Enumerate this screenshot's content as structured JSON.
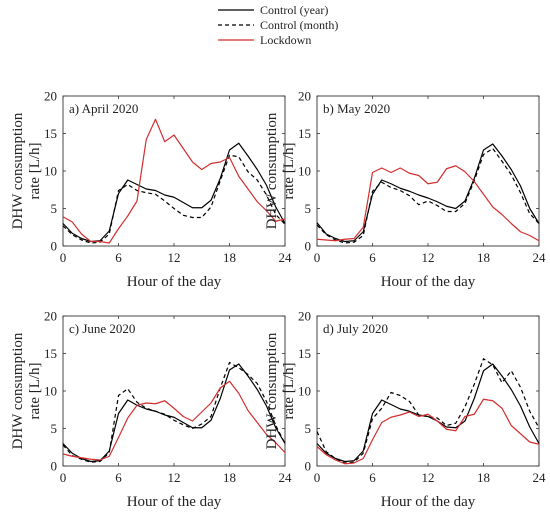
{
  "legend": {
    "items": [
      {
        "label": "Control (year)",
        "color": "#000000",
        "dash": "solid"
      },
      {
        "label": "Control (month)",
        "color": "#000000",
        "dash": "dashed"
      },
      {
        "label": "Lockdown",
        "color": "#d32f2f",
        "dash": "solid"
      }
    ]
  },
  "chart_data": [
    {
      "type": "line",
      "title": "a) April 2020",
      "xlabel": "Hour of the day",
      "ylabel": [
        "DHW consumption",
        "rate [L/h]"
      ],
      "xlim": [
        0,
        24
      ],
      "ylim": [
        0,
        20
      ],
      "xticks": [
        0,
        6,
        12,
        18,
        24
      ],
      "yticks": [
        0,
        5,
        10,
        15,
        20
      ],
      "x": [
        0,
        1,
        2,
        3,
        4,
        5,
        6,
        7,
        8,
        9,
        10,
        11,
        12,
        13,
        14,
        15,
        16,
        17,
        18,
        19,
        20,
        21,
        22,
        23,
        24
      ],
      "series": [
        {
          "name": "Control (year)",
          "values": [
            3.0,
            1.7,
            1.0,
            0.6,
            0.7,
            2.0,
            7.0,
            8.8,
            8.2,
            7.6,
            7.4,
            6.8,
            6.5,
            5.8,
            5.1,
            5.1,
            6.1,
            9.0,
            12.8,
            13.7,
            12.0,
            10.2,
            8.1,
            5.2,
            3.0
          ]
        },
        {
          "name": "Control (month)",
          "values": [
            2.7,
            1.5,
            0.8,
            0.4,
            0.5,
            1.6,
            7.4,
            8.2,
            7.4,
            7.1,
            6.9,
            6.0,
            5.0,
            4.1,
            3.8,
            3.8,
            5.2,
            8.7,
            12.1,
            11.9,
            9.9,
            8.8,
            6.8,
            4.2,
            2.9
          ]
        },
        {
          "name": "Lockdown",
          "values": [
            3.9,
            3.2,
            1.6,
            0.6,
            0.6,
            0.4,
            2.3,
            4.0,
            6.0,
            14.2,
            16.9,
            13.9,
            14.8,
            13.0,
            11.2,
            10.2,
            11.0,
            11.2,
            11.8,
            9.3,
            7.6,
            5.9,
            4.7,
            3.3,
            3.6
          ]
        }
      ]
    },
    {
      "type": "line",
      "title": "b) May 2020",
      "xlabel": "Hour of the day",
      "ylabel": [
        "DHW consumption",
        "rate [L/h]"
      ],
      "xlim": [
        0,
        24
      ],
      "ylim": [
        0,
        20
      ],
      "xticks": [
        0,
        6,
        12,
        18,
        24
      ],
      "yticks": [
        0,
        5,
        10,
        15,
        20
      ],
      "x": [
        0,
        1,
        2,
        3,
        4,
        5,
        6,
        7,
        8,
        9,
        10,
        11,
        12,
        13,
        14,
        15,
        16,
        17,
        18,
        19,
        20,
        21,
        22,
        23,
        24
      ],
      "series": [
        {
          "name": "Control (year)",
          "values": [
            3.1,
            1.6,
            1.0,
            0.6,
            0.7,
            1.9,
            6.9,
            8.8,
            8.3,
            7.7,
            7.3,
            6.8,
            6.4,
            5.9,
            5.3,
            5.0,
            6.0,
            9.0,
            12.8,
            13.6,
            12.0,
            10.2,
            8.0,
            5.0,
            3.0
          ]
        },
        {
          "name": "Control (month)",
          "values": [
            2.8,
            1.5,
            0.8,
            0.4,
            0.5,
            1.4,
            7.3,
            8.5,
            7.8,
            7.4,
            6.7,
            5.5,
            6.0,
            5.4,
            4.6,
            4.6,
            5.7,
            8.7,
            12.2,
            13.0,
            11.3,
            9.5,
            7.1,
            4.3,
            3.0
          ]
        },
        {
          "name": "Lockdown",
          "values": [
            0.9,
            0.8,
            0.7,
            0.9,
            1.0,
            2.5,
            9.8,
            10.4,
            9.8,
            10.4,
            9.7,
            9.4,
            8.3,
            8.5,
            10.3,
            10.7,
            9.9,
            8.6,
            6.9,
            5.2,
            4.2,
            3.0,
            1.9,
            1.4,
            0.7
          ]
        }
      ]
    },
    {
      "type": "line",
      "title": "c) June 2020",
      "xlabel": "Hour of the day",
      "ylabel": [
        "DHW consumption",
        "rate [L/h]"
      ],
      "xlim": [
        0,
        24
      ],
      "ylim": [
        0,
        20
      ],
      "xticks": [
        0,
        6,
        12,
        18,
        24
      ],
      "yticks": [
        0,
        5,
        10,
        15,
        20
      ],
      "x": [
        0,
        1,
        2,
        3,
        4,
        5,
        6,
        7,
        8,
        9,
        10,
        11,
        12,
        13,
        14,
        15,
        16,
        17,
        18,
        19,
        20,
        21,
        22,
        23,
        24
      ],
      "series": [
        {
          "name": "Control (year)",
          "values": [
            3.0,
            1.7,
            1.0,
            0.6,
            0.7,
            2.0,
            7.0,
            8.8,
            8.1,
            7.6,
            7.3,
            6.8,
            6.5,
            5.8,
            5.1,
            5.1,
            6.1,
            9.0,
            12.8,
            13.6,
            12.0,
            10.2,
            8.0,
            5.1,
            3.0
          ]
        },
        {
          "name": "Control (month)",
          "values": [
            2.8,
            1.4,
            0.9,
            0.5,
            0.6,
            1.8,
            9.4,
            10.3,
            8.5,
            7.7,
            7.3,
            6.9,
            6.1,
            5.5,
            5.0,
            5.6,
            6.6,
            10.4,
            13.8,
            13.1,
            12.2,
            11.0,
            8.6,
            5.4,
            3.0
          ]
        },
        {
          "name": "Lockdown",
          "values": [
            1.6,
            1.3,
            1.1,
            0.9,
            0.8,
            1.3,
            3.8,
            6.4,
            8.1,
            8.4,
            8.3,
            8.7,
            7.7,
            6.6,
            6.0,
            7.2,
            8.4,
            10.4,
            11.3,
            9.7,
            7.4,
            5.8,
            4.2,
            3.1,
            1.8
          ]
        }
      ]
    },
    {
      "type": "line",
      "title": "d) July 2020",
      "xlabel": "Hour of the day",
      "ylabel": [
        "DHW consumption",
        "rate [L/h]"
      ],
      "xlim": [
        0,
        24
      ],
      "ylim": [
        0,
        20
      ],
      "xticks": [
        0,
        6,
        12,
        18,
        24
      ],
      "yticks": [
        0,
        5,
        10,
        15,
        20
      ],
      "x": [
        0,
        1,
        2,
        3,
        4,
        5,
        6,
        7,
        8,
        9,
        10,
        11,
        12,
        13,
        14,
        15,
        16,
        17,
        18,
        19,
        20,
        21,
        22,
        23,
        24
      ],
      "series": [
        {
          "name": "Control (year)",
          "values": [
            3.0,
            1.7,
            1.0,
            0.6,
            0.7,
            2.0,
            7.0,
            8.8,
            8.2,
            7.6,
            7.3,
            6.8,
            6.6,
            6.0,
            5.2,
            5.1,
            6.0,
            9.0,
            12.7,
            13.6,
            12.0,
            10.2,
            8.0,
            5.2,
            3.0
          ]
        },
        {
          "name": "Control (month)",
          "values": [
            4.6,
            1.9,
            1.0,
            0.4,
            0.5,
            1.7,
            6.3,
            7.7,
            9.8,
            9.4,
            8.6,
            6.8,
            6.6,
            6.4,
            5.4,
            5.7,
            7.9,
            10.9,
            14.3,
            13.5,
            11.1,
            12.7,
            10.5,
            7.3,
            5.1
          ]
        },
        {
          "name": "Lockdown",
          "values": [
            2.6,
            1.5,
            0.8,
            0.3,
            0.4,
            1.0,
            3.5,
            5.8,
            6.5,
            6.8,
            7.2,
            6.6,
            6.9,
            6.0,
            4.9,
            4.7,
            6.6,
            6.9,
            8.9,
            8.7,
            7.7,
            5.4,
            4.3,
            3.2,
            2.9
          ]
        }
      ]
    }
  ]
}
